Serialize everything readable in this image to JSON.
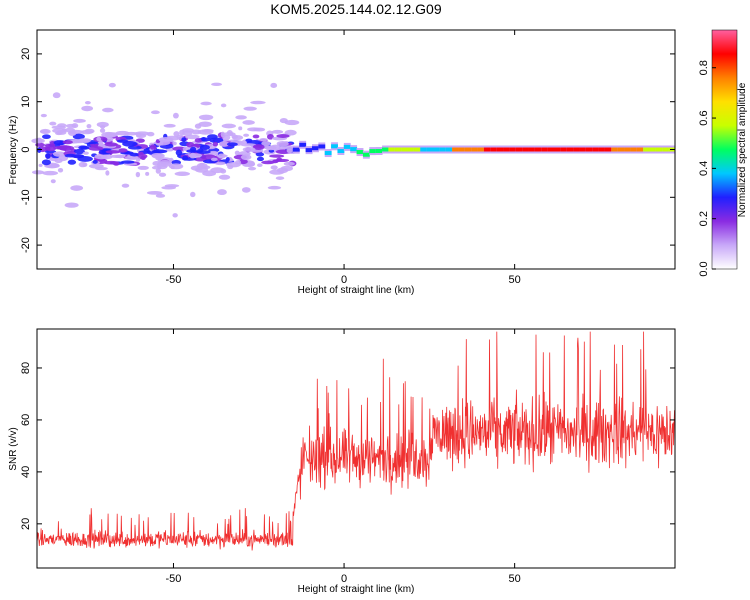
{
  "title": "KOM5.2025.144.02.12.G09",
  "chart_data": [
    {
      "type": "heatmap",
      "xlabel": "Height of straight line (km)",
      "ylabel": "Frequency (Hz)",
      "xlim": [
        -90,
        97
      ],
      "ylim": [
        -25,
        25
      ],
      "xticks": [
        -50,
        0,
        50
      ],
      "yticks": [
        -20,
        -10,
        0,
        10,
        20
      ],
      "colorbar": {
        "label": "Normalized spectral amplitude",
        "range": [
          0,
          0.95
        ],
        "ticks": [
          "0.0",
          "0.2",
          "0.4",
          "0.6",
          "0.8"
        ],
        "colors": [
          "#ffffff",
          "#c8a8f8",
          "#8a2be2",
          "#2020ff",
          "#00c8ff",
          "#00ff60",
          "#c8ff00",
          "#ffe000",
          "#ff8000",
          "#ff0000",
          "#ff60a0"
        ]
      },
      "features": [
        {
          "name": "scatter region",
          "x_range": [
            -90,
            -15
          ],
          "freq_range": [
            -10,
            10
          ]
        },
        {
          "name": "central band",
          "x_range": [
            -15,
            97
          ],
          "freq_center": 0
        }
      ]
    },
    {
      "type": "line",
      "xlabel": "Height of straight line (km)",
      "ylabel": "SNR (v/v)",
      "xlim": [
        -90,
        97
      ],
      "ylim": [
        3,
        95
      ],
      "xticks": [
        -50,
        0,
        50
      ],
      "yticks": [
        20,
        40,
        60,
        80
      ],
      "color": "#f03030",
      "segments": [
        {
          "x_range": [
            -90,
            -15
          ],
          "mean_snr": 14
        },
        {
          "x_range": [
            -12,
            25
          ],
          "mean_snr": 45
        },
        {
          "x_range": [
            25,
            97
          ],
          "mean_snr": 55
        }
      ]
    }
  ]
}
